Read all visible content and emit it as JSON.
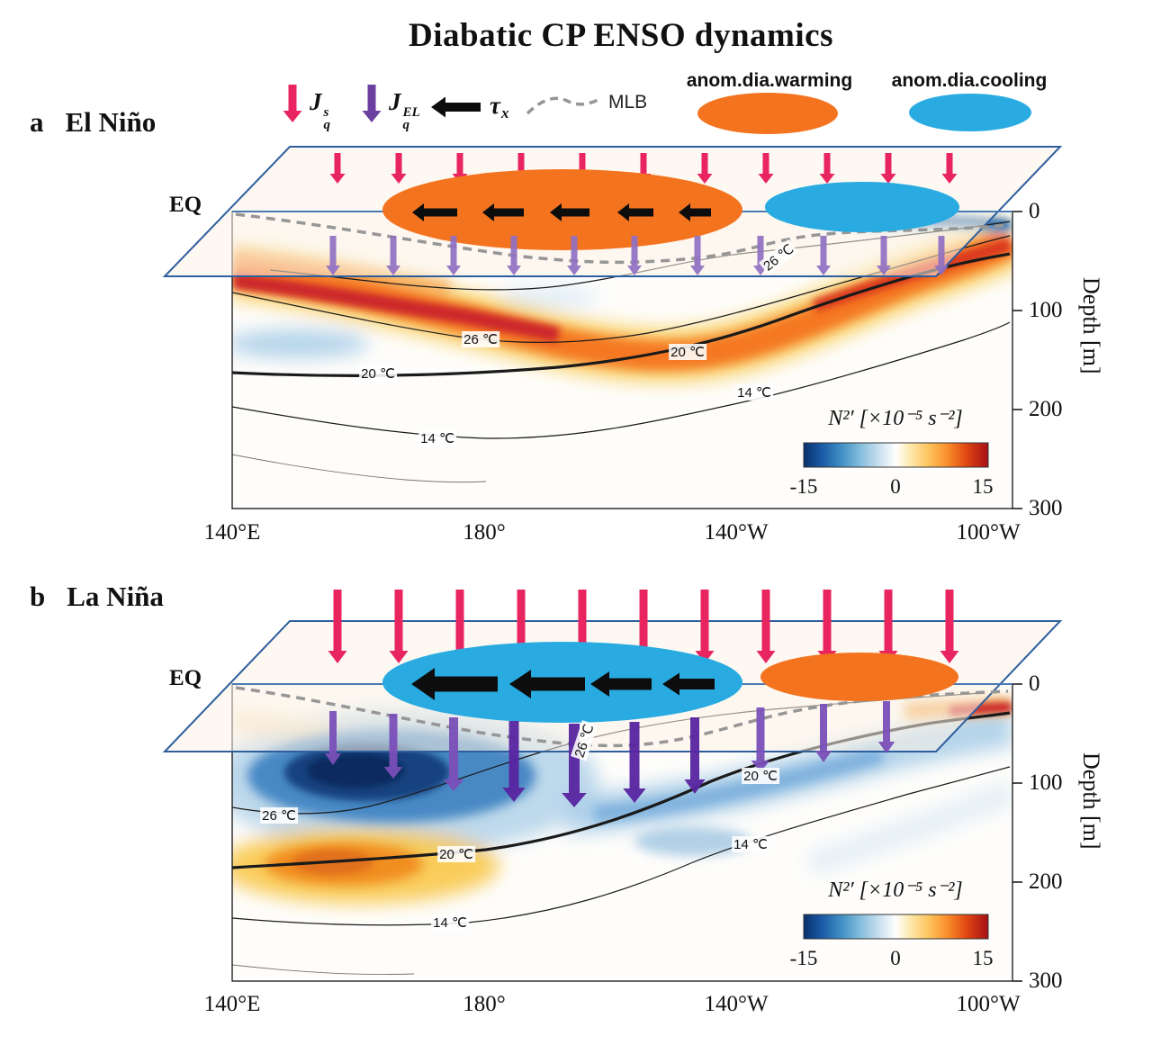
{
  "title": "Diabatic CP ENSO dynamics",
  "legend": {
    "jqs": {
      "base": "J",
      "sup": "s",
      "sub": "q"
    },
    "jqel": {
      "base": "J",
      "sup": "EL",
      "sub": "q"
    },
    "tau": {
      "base": "τ",
      "sub": "x"
    },
    "mlb": "MLB",
    "warming": "anom.dia.warming",
    "cooling": "anom.dia.cooling"
  },
  "colors": {
    "heat_flux_arrow": "#E8255F",
    "entrainment_arrow_legend": "#6B3FA0",
    "entrainment_arrow_light": "#9070C2",
    "entrainment_arrow_dark": "#5724A0",
    "wind_stress_arrow": "#0D0D0D",
    "warming_ellipse": "#F4731F",
    "cooling_ellipse": "#29ABE2",
    "plane_outline": "#2E5E9E",
    "equator_line": "#4A7AB5",
    "mlb_line": "#969696",
    "colorbar_negative_end": "#08306B",
    "colorbar_positive_end": "#A50F15"
  },
  "icons": {
    "jqs-arrow-icon": "downward pink arrow (surface heat flux)",
    "jqel-arrow-icon": "downward purple arrow (entrainment heat flux)",
    "tau-arrow-icon": "leftward black arrow (zonal wind stress)",
    "mlb-line-icon": "gray dashed curve (mixed layer base)",
    "warming-ellipse-icon": "orange filled ellipse (anomalous diabatic warming)",
    "cooling-ellipse-icon": "blue filled ellipse (anomalous diabatic cooling)"
  },
  "panels": [
    {
      "letter": "a",
      "name": "El Niño",
      "eq": "EQ",
      "x_ticks": [
        "140°E",
        "180°",
        "140°W",
        "100°W"
      ],
      "depth_ticks": [
        "0",
        "100",
        "200",
        "300"
      ],
      "depth_label": "Depth [m]",
      "contours": {
        "c26_plane": "26 ℃",
        "c26": "26 ℃",
        "c20_left": "20 ℃",
        "c20_right": "20 ℃",
        "c14_left": "14 ℃",
        "c14_right": "14 ℃"
      },
      "colorbar": {
        "label": "N²′ [×10⁻⁵ s⁻²]",
        "ticks": [
          "-15",
          "0",
          "15"
        ]
      }
    },
    {
      "letter": "b",
      "name": "La Niña",
      "eq": "EQ",
      "x_ticks": [
        "140°E",
        "180°",
        "140°W",
        "100°W"
      ],
      "depth_ticks": [
        "0",
        "100",
        "200",
        "300"
      ],
      "depth_label": "Depth [m]",
      "contours": {
        "c26_plane": "26 ℃",
        "c26": "26 ℃",
        "c20_left": "20 ℃",
        "c20_right": "20 ℃",
        "c14_left": "14 ℃",
        "c14_right": "14 ℃"
      },
      "colorbar": {
        "label": "N²′ [×10⁻⁵ s⁻²]",
        "ticks": [
          "-15",
          "0",
          "15"
        ]
      }
    }
  ],
  "chart_data": [
    {
      "type": "heatmap",
      "panel": "a",
      "title": "El Niño",
      "x_axis": {
        "ticks": [
          "140°E",
          "180°",
          "140°W",
          "100°W"
        ]
      },
      "y_axis": {
        "label": "Depth [m]",
        "ticks": [
          0,
          100,
          200,
          300
        ],
        "range": [
          0,
          300
        ],
        "inverted": true
      },
      "colorbar": {
        "label": "N²′ [×10⁻⁵ s⁻²]",
        "min": -15,
        "max": 15,
        "palette": "blue-white-red"
      },
      "isotherms_degC": [
        26,
        20,
        14
      ],
      "thermocline_20C_depth_m": {
        "140E": 165,
        "180": 160,
        "140W": 130,
        "100W": 45
      },
      "anomaly_features": [
        {
          "sign": "positive",
          "value_approx": 10,
          "description": "enhanced N²′ band along/above the thermocline, ~60–120 m in the west, shoaling eastward to near-surface at 100°W"
        },
        {
          "sign": "negative",
          "value_approx": -4,
          "description": "weak negative N²′ in western subsurface (~130 m) and at the far-eastern surface"
        }
      ],
      "schematic": {
        "surface_heat_flux": "downward pink arrows across the basin (moderate)",
        "entrainment_flux": "downward purple arrows through the mixed-layer base (moderate)",
        "wind_stress": "small westward black arrows inside the warming region",
        "diabatic_warming": "central-Pacific surface mixed layer (orange ellipse)",
        "diabatic_cooling": "east-central Pacific surface mixed layer (blue ellipse)",
        "mlb": "mixed-layer base (gray dashed), deepest near 180°–160°W"
      }
    },
    {
      "type": "heatmap",
      "panel": "b",
      "title": "La Niña",
      "x_axis": {
        "ticks": [
          "140°E",
          "180°",
          "140°W",
          "100°W"
        ]
      },
      "y_axis": {
        "label": "Depth [m]",
        "ticks": [
          0,
          100,
          200,
          300
        ],
        "range": [
          0,
          300
        ],
        "inverted": true
      },
      "colorbar": {
        "label": "N²′ [×10⁻⁵ s⁻²]",
        "min": -15,
        "max": 15,
        "palette": "blue-white-red"
      },
      "isotherms_degC": [
        26,
        20,
        14
      ],
      "thermocline_20C_depth_m": {
        "140E": 190,
        "180": 170,
        "140W": 95,
        "100W": 35
      },
      "anomaly_features": [
        {
          "sign": "negative",
          "value_approx": -13,
          "description": "strong reduced-stratification core near 170°E–180°, ~60–140 m, extending eastward along ~100 m toward 100°W"
        },
        {
          "sign": "positive",
          "value_approx": 8,
          "description": "enhanced N²′ at ~160–220 m in the west and in a thin layer at the eastern surface"
        }
      ],
      "schematic": {
        "surface_heat_flux": "strong downward pink arrows (large)",
        "entrainment_flux": "strong downward purple arrows, largest near 180°–160°W",
        "wind_stress": "large westward black arrows inside the cooling region",
        "diabatic_cooling": "central-Pacific surface mixed layer (blue ellipse)",
        "diabatic_warming": "east-central Pacific surface mixed layer (orange ellipse)",
        "mlb": "mixed-layer base (gray dashed), deepest near 180°"
      }
    }
  ]
}
